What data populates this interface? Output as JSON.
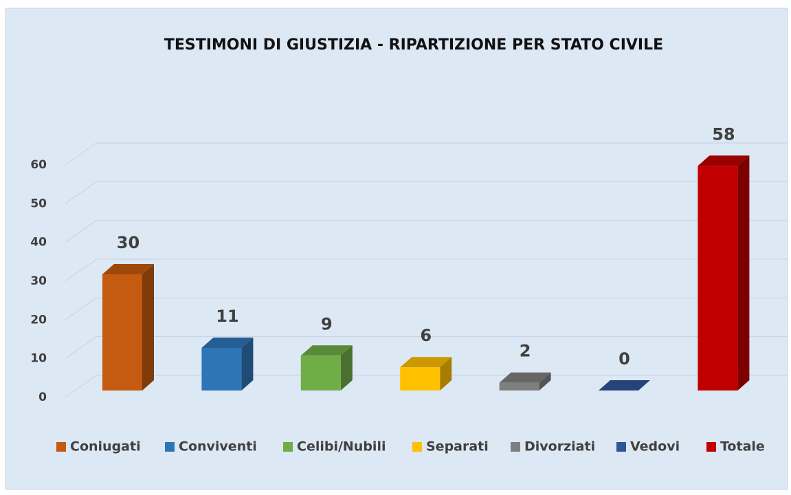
{
  "chart_data": {
    "type": "bar3d",
    "title": "TESTIMONI DI GIUSTIZIA - RIPARTIZIONE PER STATO CIVILE",
    "series": [
      {
        "name": "Coniugati",
        "color": "#c55a11",
        "values": [
          30
        ]
      },
      {
        "name": "Conviventi",
        "color": "#2e75b6",
        "values": [
          11
        ]
      },
      {
        "name": "Celibi/Nubili",
        "color": "#70ad47",
        "values": [
          9
        ]
      },
      {
        "name": "Separati",
        "color": "#ffc000",
        "values": [
          6
        ]
      },
      {
        "name": "Divorziati",
        "color": "#7f7f7f",
        "values": [
          2
        ]
      },
      {
        "name": "Vedovi",
        "color": "#2f5597",
        "values": [
          0
        ]
      },
      {
        "name": "Totale",
        "color": "#c00000",
        "values": [
          58
        ]
      }
    ],
    "ylim": [
      0,
      60
    ],
    "yticks": [
      0,
      10,
      20,
      30,
      40,
      50,
      60
    ],
    "grid": true,
    "legend": "bottom"
  }
}
